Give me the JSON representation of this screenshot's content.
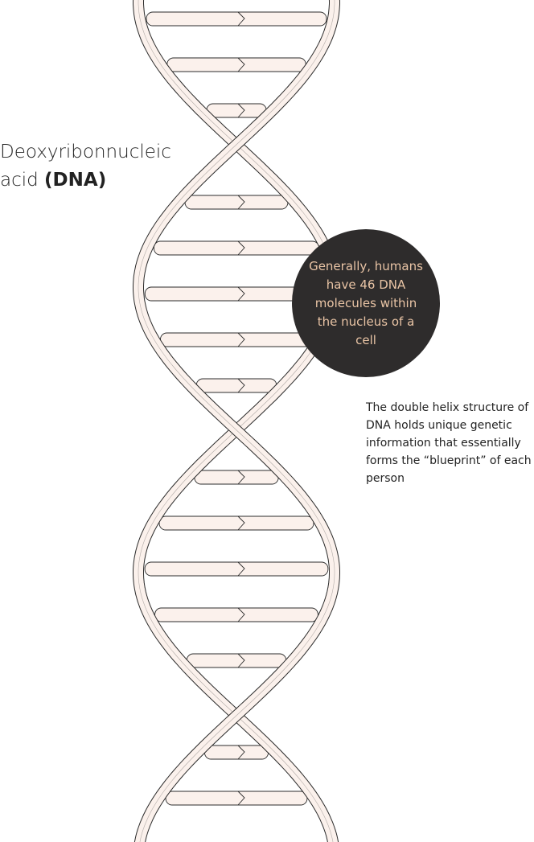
{
  "title": {
    "line1": "Deoxyribonnucleic",
    "line2_prefix": "acid ",
    "line2_bold": "(DNA)"
  },
  "callout": {
    "text": "Generally, humans have 46 DNA molecules within the nucleus of a cell"
  },
  "description": {
    "text": "The double helix structure of DNA holds unique genetic information that essentially forms the “blueprint” of each person"
  },
  "colors": {
    "strand_fill": "#fbf1ec",
    "outline": "#2b2b2b",
    "callout_bg": "#2e2c2c",
    "callout_text": "#e9c4a5"
  }
}
